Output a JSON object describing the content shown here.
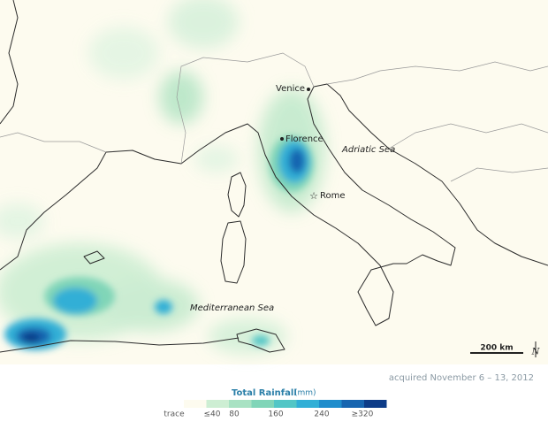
{
  "places": {
    "venice": "Venice",
    "florence": "Florence",
    "rome": "Rome",
    "adriatic": "Adriatic Sea",
    "mediterranean": "Mediterranean Sea"
  },
  "scale": "200 km",
  "north": "N",
  "caption": "acquired November 6 – 13, 2012",
  "legend": {
    "title": "Total Rainfall",
    "unit": "(mm)",
    "colors": [
      "#fdfbef",
      "#cdeed3",
      "#a8e2c3",
      "#80d5b8",
      "#52c6c6",
      "#31afd6",
      "#1f8dcc",
      "#1765b0",
      "#0d3c88"
    ],
    "labels": [
      "trace",
      "≤40",
      "80",
      "160",
      "240",
      "≥320"
    ]
  }
}
